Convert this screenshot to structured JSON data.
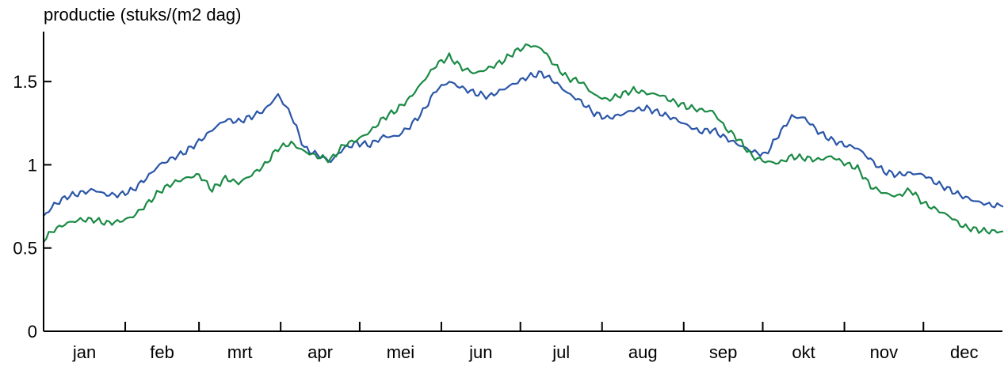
{
  "chart_data": {
    "type": "line",
    "title": "",
    "ylabel": "productie (stuks/(m2 dag)",
    "xlabel": "",
    "ylim": [
      0,
      1.8
    ],
    "yticks": [
      {
        "value": 0,
        "label": "0"
      },
      {
        "value": 0.5,
        "label": "0.5"
      },
      {
        "value": 1,
        "label": "1"
      },
      {
        "value": 1.5,
        "label": "1.5"
      }
    ],
    "months": [
      "jan",
      "feb",
      "mrt",
      "apr",
      "mei",
      "jun",
      "jul",
      "aug",
      "sep",
      "okt",
      "nov",
      "dec"
    ],
    "grid": false,
    "legend": "none",
    "x": [
      1,
      5,
      10,
      15,
      20,
      25,
      30,
      35,
      40,
      45,
      50,
      55,
      60,
      65,
      70,
      75,
      80,
      85,
      90,
      95,
      100,
      105,
      110,
      115,
      120,
      125,
      130,
      135,
      140,
      145,
      150,
      155,
      160,
      165,
      170,
      175,
      180,
      185,
      190,
      195,
      200,
      205,
      210,
      215,
      220,
      225,
      230,
      235,
      240,
      245,
      250,
      255,
      260,
      265,
      270,
      275,
      280,
      285,
      290,
      295,
      300,
      305,
      310,
      315,
      320,
      325,
      330,
      335,
      340,
      345,
      350,
      355,
      360,
      365
    ],
    "series": [
      {
        "color": "#2a56a8",
        "values": [
          0.69,
          0.76,
          0.81,
          0.83,
          0.85,
          0.82,
          0.82,
          0.85,
          0.92,
          1.0,
          1.04,
          1.08,
          1.14,
          1.21,
          1.27,
          1.26,
          1.29,
          1.33,
          1.42,
          1.3,
          1.1,
          1.06,
          1.02,
          1.1,
          1.13,
          1.12,
          1.17,
          1.17,
          1.23,
          1.32,
          1.45,
          1.5,
          1.46,
          1.43,
          1.41,
          1.45,
          1.49,
          1.53,
          1.55,
          1.5,
          1.43,
          1.38,
          1.31,
          1.28,
          1.3,
          1.33,
          1.34,
          1.31,
          1.28,
          1.24,
          1.2,
          1.21,
          1.16,
          1.12,
          1.08,
          1.06,
          1.18,
          1.29,
          1.28,
          1.2,
          1.15,
          1.12,
          1.1,
          1.03,
          0.96,
          0.94,
          0.95,
          0.94,
          0.89,
          0.85,
          0.81,
          0.78,
          0.76,
          0.75
        ]
      },
      {
        "color": "#1a8a45",
        "values": [
          0.55,
          0.61,
          0.65,
          0.67,
          0.67,
          0.65,
          0.66,
          0.69,
          0.76,
          0.84,
          0.89,
          0.92,
          0.94,
          0.85,
          0.92,
          0.89,
          0.94,
          1.0,
          1.1,
          1.13,
          1.08,
          1.05,
          1.03,
          1.12,
          1.15,
          1.2,
          1.28,
          1.33,
          1.4,
          1.5,
          1.6,
          1.65,
          1.58,
          1.55,
          1.58,
          1.62,
          1.68,
          1.72,
          1.7,
          1.6,
          1.52,
          1.5,
          1.42,
          1.39,
          1.42,
          1.45,
          1.43,
          1.42,
          1.38,
          1.35,
          1.33,
          1.32,
          1.22,
          1.15,
          1.05,
          1.02,
          1.01,
          1.05,
          1.04,
          1.03,
          1.05,
          1.01,
          0.98,
          0.87,
          0.83,
          0.81,
          0.85,
          0.77,
          0.73,
          0.69,
          0.63,
          0.61,
          0.6,
          0.6
        ]
      }
    ]
  }
}
